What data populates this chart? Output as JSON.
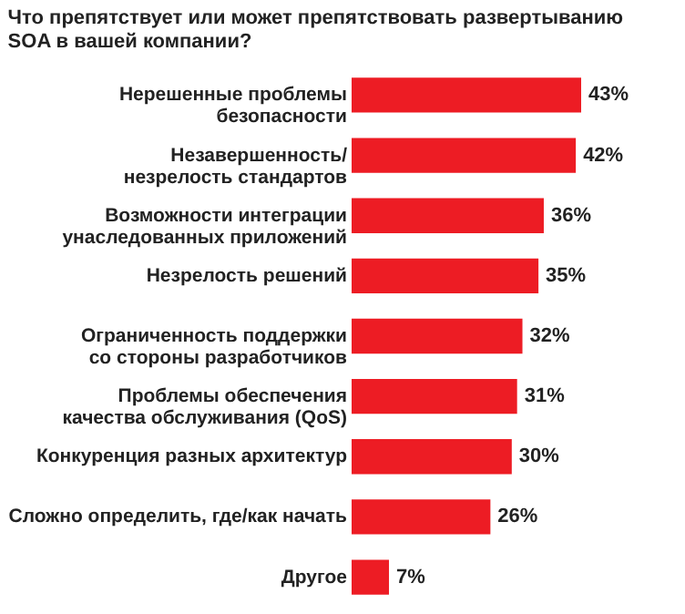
{
  "chart_data": {
    "type": "bar",
    "orientation": "horizontal",
    "title": "Что препятствует или может препятствовать развертыванию\nSOA в вашей компании?",
    "categories": [
      "Нерешенные проблемы\nбезопасности",
      "Незавершенность/\nнезрелость стандартов",
      "Возможности интеграции\nунаследованных приложений",
      "Незрелость решений",
      "Ограниченность поддержки\nсо стороны разработчиков",
      "Проблемы обеспечения\nкачества обслуживания (QoS)",
      "Конкуренция разных архитектур",
      "Сложно определить, где/как начать",
      "Другое"
    ],
    "values": [
      43,
      42,
      36,
      35,
      32,
      31,
      30,
      26,
      7
    ],
    "value_labels": [
      "43%",
      "42%",
      "36%",
      "35%",
      "32%",
      "31%",
      "30%",
      "26%",
      "7%"
    ],
    "color": "#ed1c24"
  }
}
